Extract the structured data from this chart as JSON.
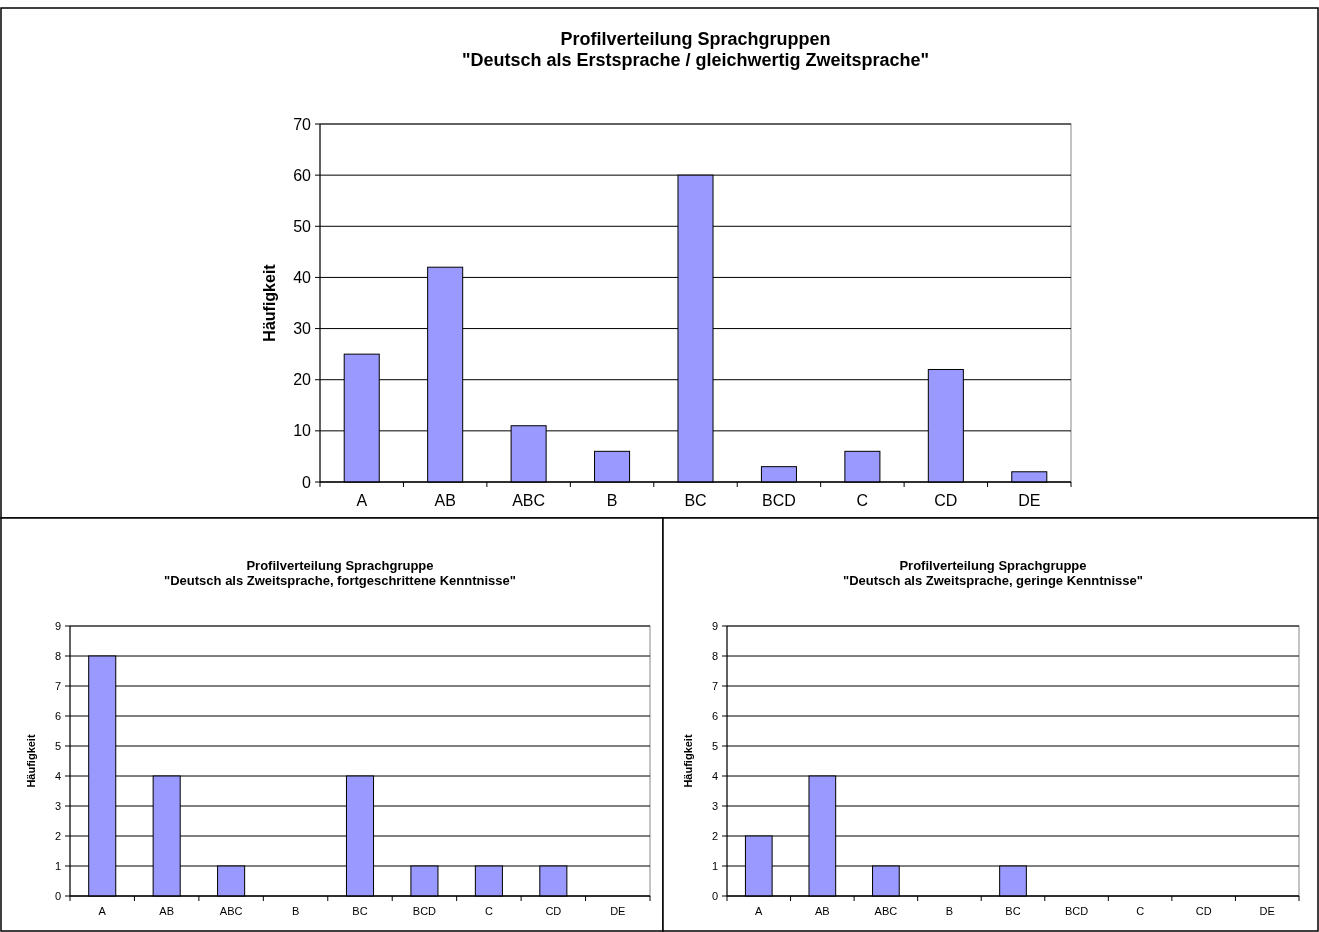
{
  "chart_data": [
    {
      "type": "bar",
      "title": "Profilverteilung Sprachgruppen",
      "subtitle": "\"Deutsch als Erstsprache / gleichwertig Zweitsprache\"",
      "ylabel": "Häufigkeit",
      "categories": [
        "A",
        "AB",
        "ABC",
        "B",
        "BC",
        "BCD",
        "C",
        "CD",
        "DE"
      ],
      "values": [
        25,
        42,
        11,
        6,
        60,
        3,
        6,
        22,
        2
      ],
      "color": "#9999ff",
      "ylim": [
        0,
        70
      ],
      "yticks": [
        0,
        10,
        20,
        30,
        40,
        50,
        60,
        70
      ],
      "grid": "y"
    },
    {
      "type": "bar",
      "title": "Profilverteilung Sprachgruppe",
      "subtitle": "\"Deutsch als Zweitsprache, fortgeschrittene Kenntnisse\"",
      "ylabel": "Häufigkeit",
      "categories": [
        "A",
        "AB",
        "ABC",
        "B",
        "BC",
        "BCD",
        "C",
        "CD",
        "DE"
      ],
      "values": [
        8,
        4,
        1,
        0,
        4,
        1,
        1,
        1,
        0
      ],
      "color": "#9999ff",
      "ylim": [
        0,
        9
      ],
      "yticks": [
        0,
        1,
        2,
        3,
        4,
        5,
        6,
        7,
        8,
        9
      ],
      "grid": "y"
    },
    {
      "type": "bar",
      "title": "Profilverteilung Sprachgruppe",
      "subtitle": "\"Deutsch als Zweitsprache, geringe Kenntnisse\"",
      "ylabel": "Häufigkeit",
      "categories": [
        "A",
        "AB",
        "ABC",
        "B",
        "BC",
        "BCD",
        "C",
        "CD",
        "DE"
      ],
      "values": [
        2,
        4,
        1,
        0,
        1,
        0,
        0,
        0,
        0
      ],
      "color": "#9999ff",
      "ylim": [
        0,
        9
      ],
      "yticks": [
        0,
        1,
        2,
        3,
        4,
        5,
        6,
        7,
        8,
        9
      ],
      "grid": "y"
    }
  ]
}
